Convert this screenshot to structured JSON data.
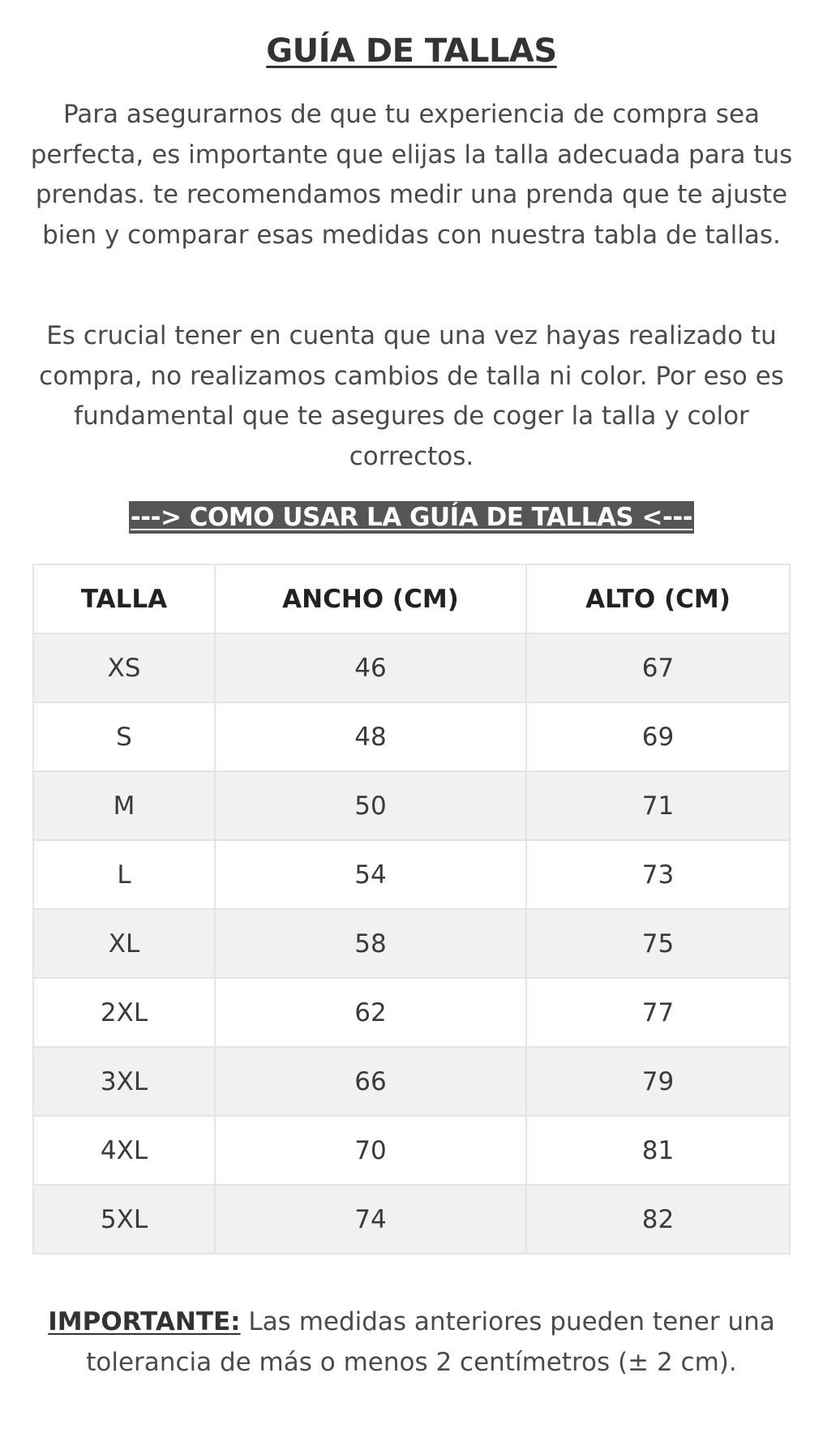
{
  "title": "GUÍA DE TALLAS",
  "intro_paragraph": "Para asegurarnos de que tu experiencia de compra sea perfecta, es importante que elijas la talla adecuada para tus prendas. te recomendamos medir una prenda que te ajuste bien y comparar esas medidas con nuestra tabla de tallas.",
  "warning_paragraph": "Es crucial tener en cuenta que una vez hayas realizado tu compra, no realizamos cambios de talla ni color. Por eso es fundamental que te asegures de coger la talla y color correctos.",
  "how_to_link": "---> COMO USAR LA GUÍA DE TALLAS <---",
  "table": {
    "headers": [
      "TALLA",
      "ANCHO (CM)",
      "ALTO (CM)"
    ],
    "rows": [
      [
        "XS",
        "46",
        "67"
      ],
      [
        "S",
        "48",
        "69"
      ],
      [
        "M",
        "50",
        "71"
      ],
      [
        "L",
        "54",
        "73"
      ],
      [
        "XL",
        "58",
        "75"
      ],
      [
        "2XL",
        "62",
        "77"
      ],
      [
        "3XL",
        "66",
        "79"
      ],
      [
        "4XL",
        "70",
        "81"
      ],
      [
        "5XL",
        "74",
        "82"
      ]
    ]
  },
  "note": {
    "label": "IMPORTANTE:",
    "text": " Las medidas anteriores pueden tener una tolerancia de más o menos 2 centímetros (± 2 cm)."
  },
  "colors": {
    "text": "#4a4a4a",
    "heading": "#333333",
    "highlight_bg": "#555555",
    "row_stripe": "#f1f1f1",
    "border": "#e4e4e4"
  }
}
